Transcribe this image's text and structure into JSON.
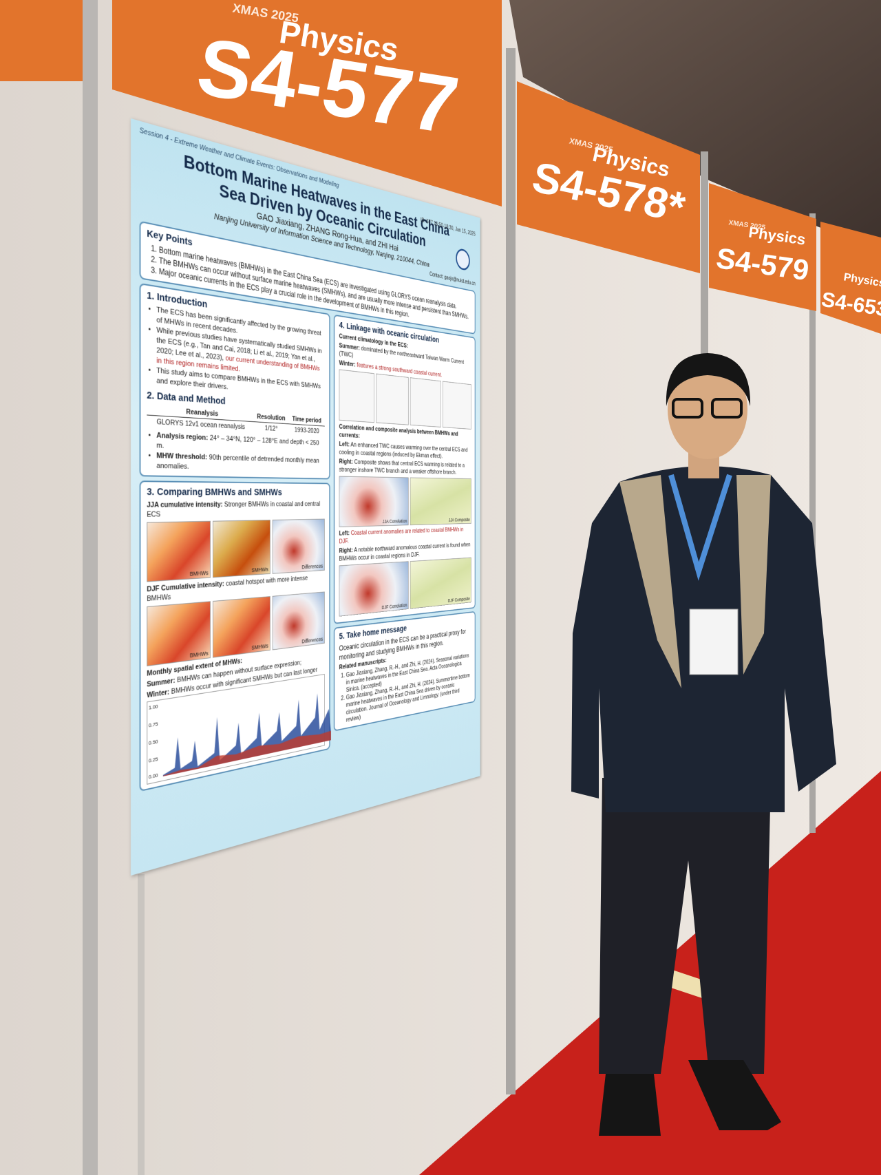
{
  "booths": [
    {
      "logo": "XMAS 2025",
      "subject": "Physics",
      "code": "S4-577"
    },
    {
      "logo": "XMAS 2025",
      "subject": "Physics",
      "code": "S4-578*"
    },
    {
      "logo": "XMAS 2025",
      "subject": "Physics",
      "code": "S4-579"
    },
    {
      "subject": "Physics",
      "code": "S4-653"
    }
  ],
  "poster": {
    "session": "Session 4 - Extreme Weather and Climate Events: Observations and Modeling",
    "id": "ID: 577  16:50-18:30, Jan 15, 2025",
    "title": "Bottom Marine Heatwaves in the East China Sea Driven by Oceanic Circulation",
    "authors": "GAO Jiaxiang, ZHANG Rong-Hua, and ZHI Hai",
    "affiliation": "Nanjing University of Information Science and Technology, Nanjing, 210044, China",
    "contact": "Contact: gaojx@nuist.edu.cn",
    "key_points": {
      "heading": "Key Points",
      "items": [
        "Bottom marine heatwaves (BMHWs) in the East China Sea (ECS) are investigated using GLORYS ocean reanalysis data.",
        "The BMHWs can occur without surface marine heatwaves (SMHWs), and are usually more intense and persistent than SMHWs.",
        "Major oceanic currents in the ECS play a crucial role in the development of BMHWs in this region."
      ]
    },
    "introduction": {
      "heading": "1. Introduction",
      "bullet1": "The ECS has been significantly affected by the growing threat of MHWs in recent decades.",
      "bullet2": "While previous studies have systematically studied SMHWs in the ECS (e.g., Tan and Cai, 2018; Li et al., 2019; Yan et al., 2020; Lee et al., 2023), ",
      "bullet2_highlight": "our current understanding of BMHWs in this region remains limited.",
      "bullet3": "This study aims to compare BMHWs in the ECS with SMHWs and explore their drivers."
    },
    "data_method": {
      "heading": "2. Data and Method",
      "headers": [
        "Reanalysis",
        "Resolution",
        "Time period"
      ],
      "row": [
        "GLORYS 12v1 ocean reanalysis",
        "1/12°",
        "1993-2020"
      ],
      "region_label": "Analysis region:",
      "region": " 24° – 34°N, 120° – 128°E and depth < 250 m.",
      "threshold_label": "MHW threshold:",
      "threshold": " 90th percentile of detrended monthly mean anomalies."
    },
    "comparing": {
      "heading": "3. Comparing BMHWs and SMHWs",
      "jja_label": "JJA cumulative intensity:",
      "jja": " Stronger BMHWs in coastal and central ECS",
      "djf_label": "DJF Cumulative intensity:",
      "djf": " coastal hotspot with more intense BMHWs",
      "map_labels": [
        "BMHWs",
        "SMHWs",
        "Differences"
      ],
      "extent_heading": "Monthly spatial extent of MHWs:",
      "summer_label": "Summer:",
      "summer": " BMHWs can happen without surface expression;",
      "winter_label": "Winter:",
      "winter": " BMHWs occur with significant SMHWs but can last longer",
      "yticks": [
        "1.00",
        "0.75",
        "0.50",
        "0.25",
        "0.00"
      ]
    },
    "linkage": {
      "heading": "4. Linkage with oceanic circulation",
      "climatology": "Current climatology in the ECS:",
      "summer_label": "Summer:",
      "summer": " dominated by the northeastward Taiwan Warm Current (TWC)",
      "winter_label": "Winter:",
      "winter": " features a strong southward coastal current.",
      "analysis": "Correlation and composite analysis between BMHWs and currents:",
      "jja_left_label": "Left:",
      "jja_left": " An enhanced TWC causes warming over the central ECS and cooling in coastal regions (induced by Ekman effect).",
      "jja_right_label": "Right:",
      "jja_right": " Composite shows that central ECS warming is related to a stronger inshore TWC branch and a weaker offshore branch.",
      "jja_maps": [
        "JJA Correlation",
        "JJA Composite"
      ],
      "djf_left_label": "Left:",
      "djf_left": " Coastal current anomalies are related to coastal BMHWs in DJF.",
      "djf_right_label": "Right:",
      "djf_right": " A notable northward anomalous coastal current is found when BMHWs occur in coastal regions in DJF.",
      "djf_maps": [
        "DJF Correlation",
        "DJF Composite"
      ]
    },
    "take_home": {
      "heading": "5. Take home message",
      "message": "Oceanic circulation in the ECS can be a practical proxy for monitoring and studying BMHWs in this region.",
      "related": "Related manuscripts:",
      "refs": [
        "Gao Jiaxiang, Zhang, R.-H., and Zhi, H. (2024). Seasonal variations in marine heatwaves in the East China Sea. Acta Oceanologica Sinica. (accepted)",
        "Gao Jiaxiang, Zhang, R.-H., and Zhi, H. (2024). Summertime bottom marine heatwaves in the East China Sea driven by oceanic circulation. Journal of Oceanology and Limnology. (under third review)"
      ]
    }
  }
}
